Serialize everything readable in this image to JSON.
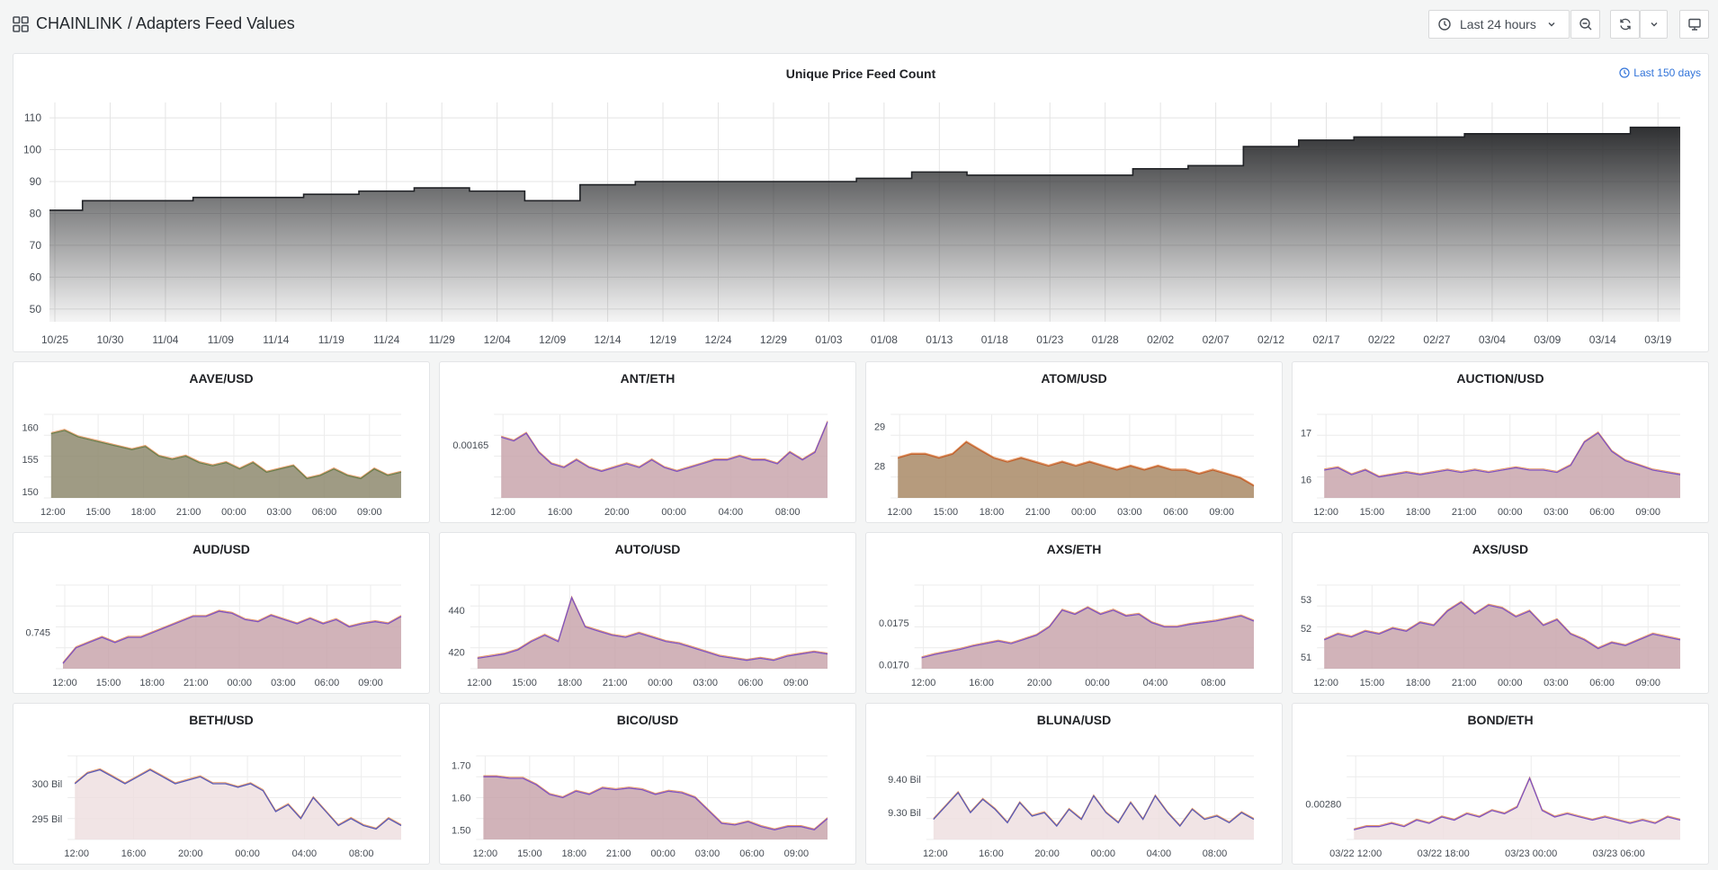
{
  "header": {
    "org": "CHAINLINK",
    "title": "/ Adapters Feed Values",
    "time_range": "Last 24 hours"
  },
  "colors": {
    "series_a": "#e0752d",
    "series_b": "#56a64b",
    "series_c": "#a352cc",
    "series_d": "#3274d9",
    "area_main_top": "#303133",
    "grid": "#e4e4e4"
  },
  "main_panel": {
    "title": "Unique Price Feed Count",
    "time_override": "Last 150 days",
    "chart_data": {
      "type": "area",
      "x": [
        "10/25",
        "10/30",
        "11/04",
        "11/09",
        "11/14",
        "11/19",
        "11/24",
        "11/29",
        "12/04",
        "12/09",
        "12/14",
        "12/19",
        "12/24",
        "12/29",
        "01/03",
        "01/08",
        "01/13",
        "01/18",
        "01/23",
        "01/28",
        "02/02",
        "02/07",
        "02/12",
        "02/17",
        "02/22",
        "02/27",
        "03/04",
        "03/09",
        "03/14",
        "03/19"
      ],
      "values": [
        81,
        84,
        84,
        85,
        85,
        86,
        87,
        88,
        87,
        84,
        89,
        90,
        90,
        90,
        90,
        91,
        93,
        92,
        92,
        92,
        94,
        95,
        101,
        103,
        104,
        104,
        105,
        105,
        105,
        107
      ],
      "yticks": [
        50,
        60,
        70,
        80,
        90,
        100,
        110
      ],
      "ylim": [
        46,
        112
      ]
    }
  },
  "panels": [
    {
      "title": "AAVE/USD",
      "xticks": [
        "12:00",
        "15:00",
        "18:00",
        "21:00",
        "00:00",
        "03:00",
        "06:00",
        "09:00"
      ],
      "yticks": [
        "150",
        "155",
        "160"
      ],
      "ylim": [
        149,
        162
      ],
      "values": [
        159,
        159.5,
        158.5,
        158,
        157.5,
        157,
        156.5,
        157,
        155.5,
        155,
        155.5,
        154.5,
        154,
        154.5,
        153.5,
        154.5,
        153,
        153.5,
        154,
        152,
        152.5,
        153.5,
        152.5,
        152,
        153.5,
        152.5,
        153
      ],
      "fill": "#8e8a6e",
      "line": "#6b7d4a"
    },
    {
      "title": "ANT/ETH",
      "xticks": [
        "12:00",
        "16:00",
        "20:00",
        "00:00",
        "04:00",
        "08:00"
      ],
      "yticks": [
        "0.00165"
      ],
      "ylim": [
        0.00158,
        0.00169
      ],
      "values": [
        0.00166,
        0.001655,
        0.001665,
        0.00164,
        0.001625,
        0.00162,
        0.00163,
        0.00162,
        0.001615,
        0.00162,
        0.001625,
        0.00162,
        0.00163,
        0.00162,
        0.001615,
        0.00162,
        0.001625,
        0.00163,
        0.00163,
        0.001635,
        0.00163,
        0.00163,
        0.001625,
        0.00164,
        0.00163,
        0.00164,
        0.00168
      ],
      "fill": "#c9a6ad",
      "line": "#7f52c0"
    },
    {
      "title": "ATOM/USD",
      "xticks": [
        "12:00",
        "15:00",
        "18:00",
        "21:00",
        "00:00",
        "03:00",
        "06:00",
        "09:00"
      ],
      "yticks": [
        "28",
        "29"
      ],
      "ylim": [
        27.2,
        29.3
      ],
      "values": [
        28.2,
        28.3,
        28.3,
        28.2,
        28.3,
        28.6,
        28.4,
        28.2,
        28.1,
        28.2,
        28.1,
        28.0,
        28.1,
        28.0,
        28.1,
        28.0,
        27.9,
        28.0,
        27.9,
        28.0,
        27.9,
        27.9,
        27.8,
        27.9,
        27.8,
        27.7,
        27.5
      ],
      "fill": "#a98a66",
      "line": "#c0602c"
    },
    {
      "title": "AUCTION/USD",
      "xticks": [
        "12:00",
        "15:00",
        "18:00",
        "21:00",
        "00:00",
        "03:00",
        "06:00",
        "09:00"
      ],
      "yticks": [
        "16",
        "17"
      ],
      "ylim": [
        15.6,
        17.4
      ],
      "values": [
        16.2,
        16.25,
        16.1,
        16.2,
        16.05,
        16.1,
        16.15,
        16.1,
        16.15,
        16.2,
        16.15,
        16.2,
        16.15,
        16.2,
        16.25,
        16.2,
        16.2,
        16.15,
        16.3,
        16.8,
        17.0,
        16.6,
        16.4,
        16.3,
        16.2,
        16.15,
        16.1
      ],
      "fill": "#c9a6ad",
      "line": "#7f52c0"
    },
    {
      "title": "AUD/USD",
      "xticks": [
        "12:00",
        "15:00",
        "18:00",
        "21:00",
        "00:00",
        "03:00",
        "06:00",
        "09:00"
      ],
      "yticks": [
        "0.745"
      ],
      "ylim": [
        0.7415,
        0.7495
      ],
      "values": [
        0.742,
        0.7435,
        0.744,
        0.7445,
        0.744,
        0.7445,
        0.7445,
        0.745,
        0.7455,
        0.746,
        0.7465,
        0.7465,
        0.747,
        0.7468,
        0.7462,
        0.746,
        0.7466,
        0.7462,
        0.7458,
        0.7463,
        0.7458,
        0.7462,
        0.7455,
        0.7458,
        0.746,
        0.7458,
        0.7465
      ],
      "fill": "#c9a6ad",
      "line": "#7f52c0"
    },
    {
      "title": "AUTO/USD",
      "xticks": [
        "12:00",
        "15:00",
        "18:00",
        "21:00",
        "00:00",
        "03:00",
        "06:00",
        "09:00"
      ],
      "yticks": [
        "420",
        "440"
      ],
      "ylim": [
        412,
        452
      ],
      "values": [
        417,
        418,
        419,
        421,
        425,
        428,
        425,
        446,
        432,
        430,
        428,
        427,
        429,
        427,
        425,
        424,
        422,
        420,
        418,
        417,
        416,
        417,
        416,
        418,
        419,
        420,
        419
      ],
      "fill": "#c9a6ad",
      "line": "#7f52c0"
    },
    {
      "title": "AXS/ETH",
      "xticks": [
        "12:00",
        "16:00",
        "20:00",
        "00:00",
        "04:00",
        "08:00"
      ],
      "yticks": [
        "0.0170",
        "0.0175"
      ],
      "ylim": [
        0.01695,
        0.01795
      ],
      "values": [
        0.01708,
        0.01712,
        0.01715,
        0.01718,
        0.01722,
        0.01725,
        0.01728,
        0.01725,
        0.0173,
        0.01735,
        0.01745,
        0.01765,
        0.0176,
        0.01768,
        0.0176,
        0.01765,
        0.01758,
        0.0176,
        0.0175,
        0.01745,
        0.01745,
        0.01748,
        0.0175,
        0.01752,
        0.01755,
        0.01758,
        0.01752
      ],
      "fill": "#c9a6ad",
      "line": "#7f52c0"
    },
    {
      "title": "AXS/USD",
      "xticks": [
        "12:00",
        "15:00",
        "18:00",
        "21:00",
        "00:00",
        "03:00",
        "06:00",
        "09:00"
      ],
      "yticks": [
        "51",
        "52",
        "53"
      ],
      "ylim": [
        50.6,
        53.5
      ],
      "values": [
        51.6,
        51.8,
        51.7,
        51.9,
        51.8,
        52.0,
        51.9,
        52.2,
        52.1,
        52.6,
        52.9,
        52.5,
        52.8,
        52.7,
        52.4,
        52.6,
        52.1,
        52.3,
        51.8,
        51.6,
        51.3,
        51.5,
        51.4,
        51.6,
        51.8,
        51.7,
        51.6
      ],
      "fill": "#c9a6ad",
      "line": "#7f52c0"
    },
    {
      "title": "BETH/USD",
      "xticks": [
        "12:00",
        "16:00",
        "20:00",
        "00:00",
        "04:00",
        "08:00"
      ],
      "yticks": [
        "295 Bil",
        "300 Bil"
      ],
      "ylim": [
        292,
        304
      ],
      "values": [
        300,
        301.5,
        302,
        301,
        300,
        301,
        302,
        301,
        300,
        300.5,
        301,
        300,
        300,
        299.5,
        300,
        299,
        296,
        297,
        295,
        298,
        296,
        294,
        295,
        294,
        293.5,
        295,
        294
      ],
      "fill": "#efdfe1",
      "line": "#5a5ab5"
    },
    {
      "title": "BICO/USD",
      "xticks": [
        "12:00",
        "15:00",
        "18:00",
        "21:00",
        "00:00",
        "03:00",
        "06:00",
        "09:00"
      ],
      "yticks": [
        "1.50",
        "1.60",
        "1.70"
      ],
      "ylim": [
        1.47,
        1.73
      ],
      "values": [
        1.665,
        1.665,
        1.66,
        1.66,
        1.64,
        1.61,
        1.6,
        1.62,
        1.61,
        1.63,
        1.625,
        1.63,
        1.625,
        1.61,
        1.62,
        1.615,
        1.6,
        1.56,
        1.52,
        1.515,
        1.525,
        1.51,
        1.5,
        1.51,
        1.51,
        1.5,
        1.535
      ],
      "fill": "#c9a6ad",
      "line": "#7f52c0"
    },
    {
      "title": "BLUNA/USD",
      "xticks": [
        "12:00",
        "16:00",
        "20:00",
        "00:00",
        "04:00",
        "08:00"
      ],
      "yticks": [
        "9.30 Bil",
        "9.40 Bil"
      ],
      "ylim": [
        9.22,
        9.47
      ],
      "values": [
        9.28,
        9.32,
        9.36,
        9.3,
        9.34,
        9.31,
        9.27,
        9.33,
        9.29,
        9.3,
        9.26,
        9.31,
        9.28,
        9.35,
        9.3,
        9.27,
        9.33,
        9.28,
        9.35,
        9.3,
        9.26,
        9.31,
        9.28,
        9.29,
        9.27,
        9.3,
        9.28
      ],
      "fill": "#efdfe1",
      "line": "#5a5ab5"
    },
    {
      "title": "BOND/ETH",
      "xticks": [
        "03/22 12:00",
        "03/22 18:00",
        "03/23 00:00",
        "03/23 06:00"
      ],
      "yticks": [
        "0.00280"
      ],
      "ylim": [
        0.00269,
        0.00295
      ],
      "values": [
        0.00272,
        0.00273,
        0.00273,
        0.00274,
        0.00273,
        0.00275,
        0.00274,
        0.00276,
        0.00275,
        0.00277,
        0.00276,
        0.00278,
        0.00277,
        0.00279,
        0.00288,
        0.00278,
        0.00276,
        0.00277,
        0.00276,
        0.00275,
        0.00276,
        0.00275,
        0.00274,
        0.00275,
        0.00274,
        0.00276,
        0.00275
      ],
      "fill": "#efdfe1",
      "line": "#7f52c0"
    }
  ]
}
